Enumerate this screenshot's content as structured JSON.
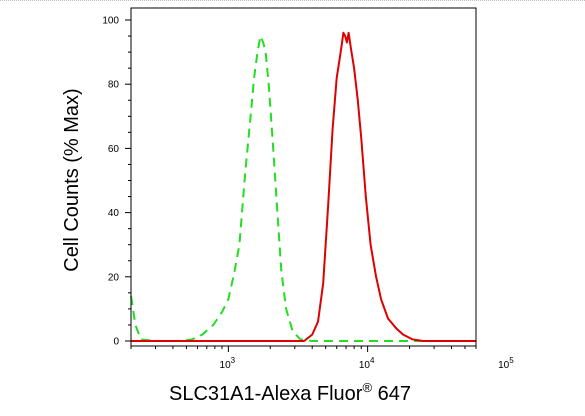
{
  "chart_data": {
    "type": "line",
    "xlabel": "SLC31A1-Alexa Fluor",
    "xlabel_sup": "®",
    "xlabel_suffix": " 647",
    "ylabel": "Cell Counts (% Max)",
    "x_scale": "log",
    "xlim": [
      200,
      60000
    ],
    "ylim": [
      0,
      100
    ],
    "y_ticks": [
      {
        "value": 0,
        "label": "0"
      },
      {
        "value": 20,
        "label": "20"
      },
      {
        "value": 40,
        "label": "40"
      },
      {
        "value": 60,
        "label": "60"
      },
      {
        "value": 80,
        "label": "80"
      },
      {
        "value": 100,
        "label": "100"
      }
    ],
    "x_ticks": [
      {
        "value": 1000,
        "base": "10",
        "exp": "3"
      },
      {
        "value": 10000,
        "base": "10",
        "exp": "4"
      },
      {
        "value": 100000,
        "base": "10",
        "exp": "5"
      }
    ],
    "grid": false,
    "series": [
      {
        "style": "dashed",
        "color": "#22dd22",
        "points": [
          [
            200,
            14
          ],
          [
            215,
            5
          ],
          [
            235,
            0.5
          ],
          [
            300,
            0
          ],
          [
            450,
            0
          ],
          [
            550,
            0.5
          ],
          [
            650,
            2
          ],
          [
            780,
            5
          ],
          [
            900,
            9
          ],
          [
            1000,
            13
          ],
          [
            1100,
            21
          ],
          [
            1200,
            30
          ],
          [
            1320,
            52
          ],
          [
            1430,
            68
          ],
          [
            1530,
            82
          ],
          [
            1620,
            90
          ],
          [
            1700,
            95
          ],
          [
            1780,
            93
          ],
          [
            1850,
            90
          ],
          [
            1950,
            80
          ],
          [
            2100,
            60
          ],
          [
            2250,
            40
          ],
          [
            2400,
            22
          ],
          [
            2600,
            10
          ],
          [
            2900,
            3
          ],
          [
            3300,
            0.5
          ],
          [
            4000,
            0
          ],
          [
            60000,
            0
          ]
        ]
      },
      {
        "style": "solid",
        "color": "#dd0000",
        "points": [
          [
            200,
            0
          ],
          [
            3500,
            0
          ],
          [
            4000,
            2
          ],
          [
            4400,
            6
          ],
          [
            4800,
            18
          ],
          [
            5200,
            42
          ],
          [
            5600,
            66
          ],
          [
            6000,
            82
          ],
          [
            6300,
            88
          ],
          [
            6500,
            92
          ],
          [
            6700,
            96
          ],
          [
            6900,
            95
          ],
          [
            7100,
            93
          ],
          [
            7300,
            96
          ],
          [
            7600,
            91
          ],
          [
            8000,
            85
          ],
          [
            8500,
            75
          ],
          [
            9000,
            63
          ],
          [
            9700,
            45
          ],
          [
            10500,
            30
          ],
          [
            11500,
            20
          ],
          [
            12500,
            13
          ],
          [
            14000,
            7
          ],
          [
            16000,
            4
          ],
          [
            18000,
            2
          ],
          [
            21000,
            0.5
          ],
          [
            25000,
            0
          ],
          [
            60000,
            0
          ]
        ]
      }
    ]
  }
}
